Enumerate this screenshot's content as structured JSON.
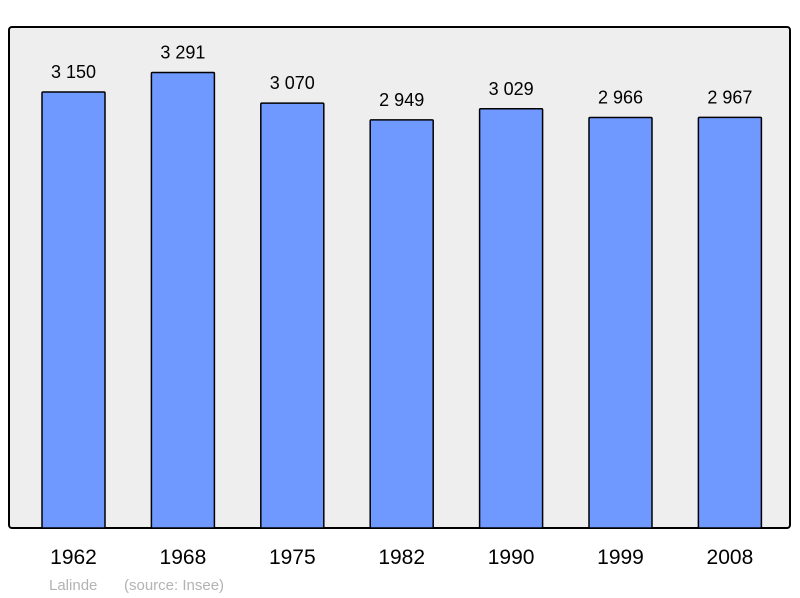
{
  "chart_data": {
    "type": "bar",
    "categories": [
      "1962",
      "1968",
      "1975",
      "1982",
      "1990",
      "1999",
      "2008"
    ],
    "values": [
      3150,
      3291,
      3070,
      2949,
      3029,
      2966,
      2967
    ],
    "value_labels": [
      "3 150",
      "3 291",
      "3 070",
      "2 949",
      "3 029",
      "2 966",
      "2 967"
    ],
    "title": "",
    "xlabel": "",
    "ylabel": "",
    "ylim": [
      0,
      3620
    ],
    "grid": false,
    "legend": "none",
    "colors": {
      "bar": "#7099ff",
      "plot_background": "#eeeeee",
      "frame": "#000000"
    }
  },
  "footer": {
    "place": "Lalinde",
    "source": "(source: Insee)"
  }
}
